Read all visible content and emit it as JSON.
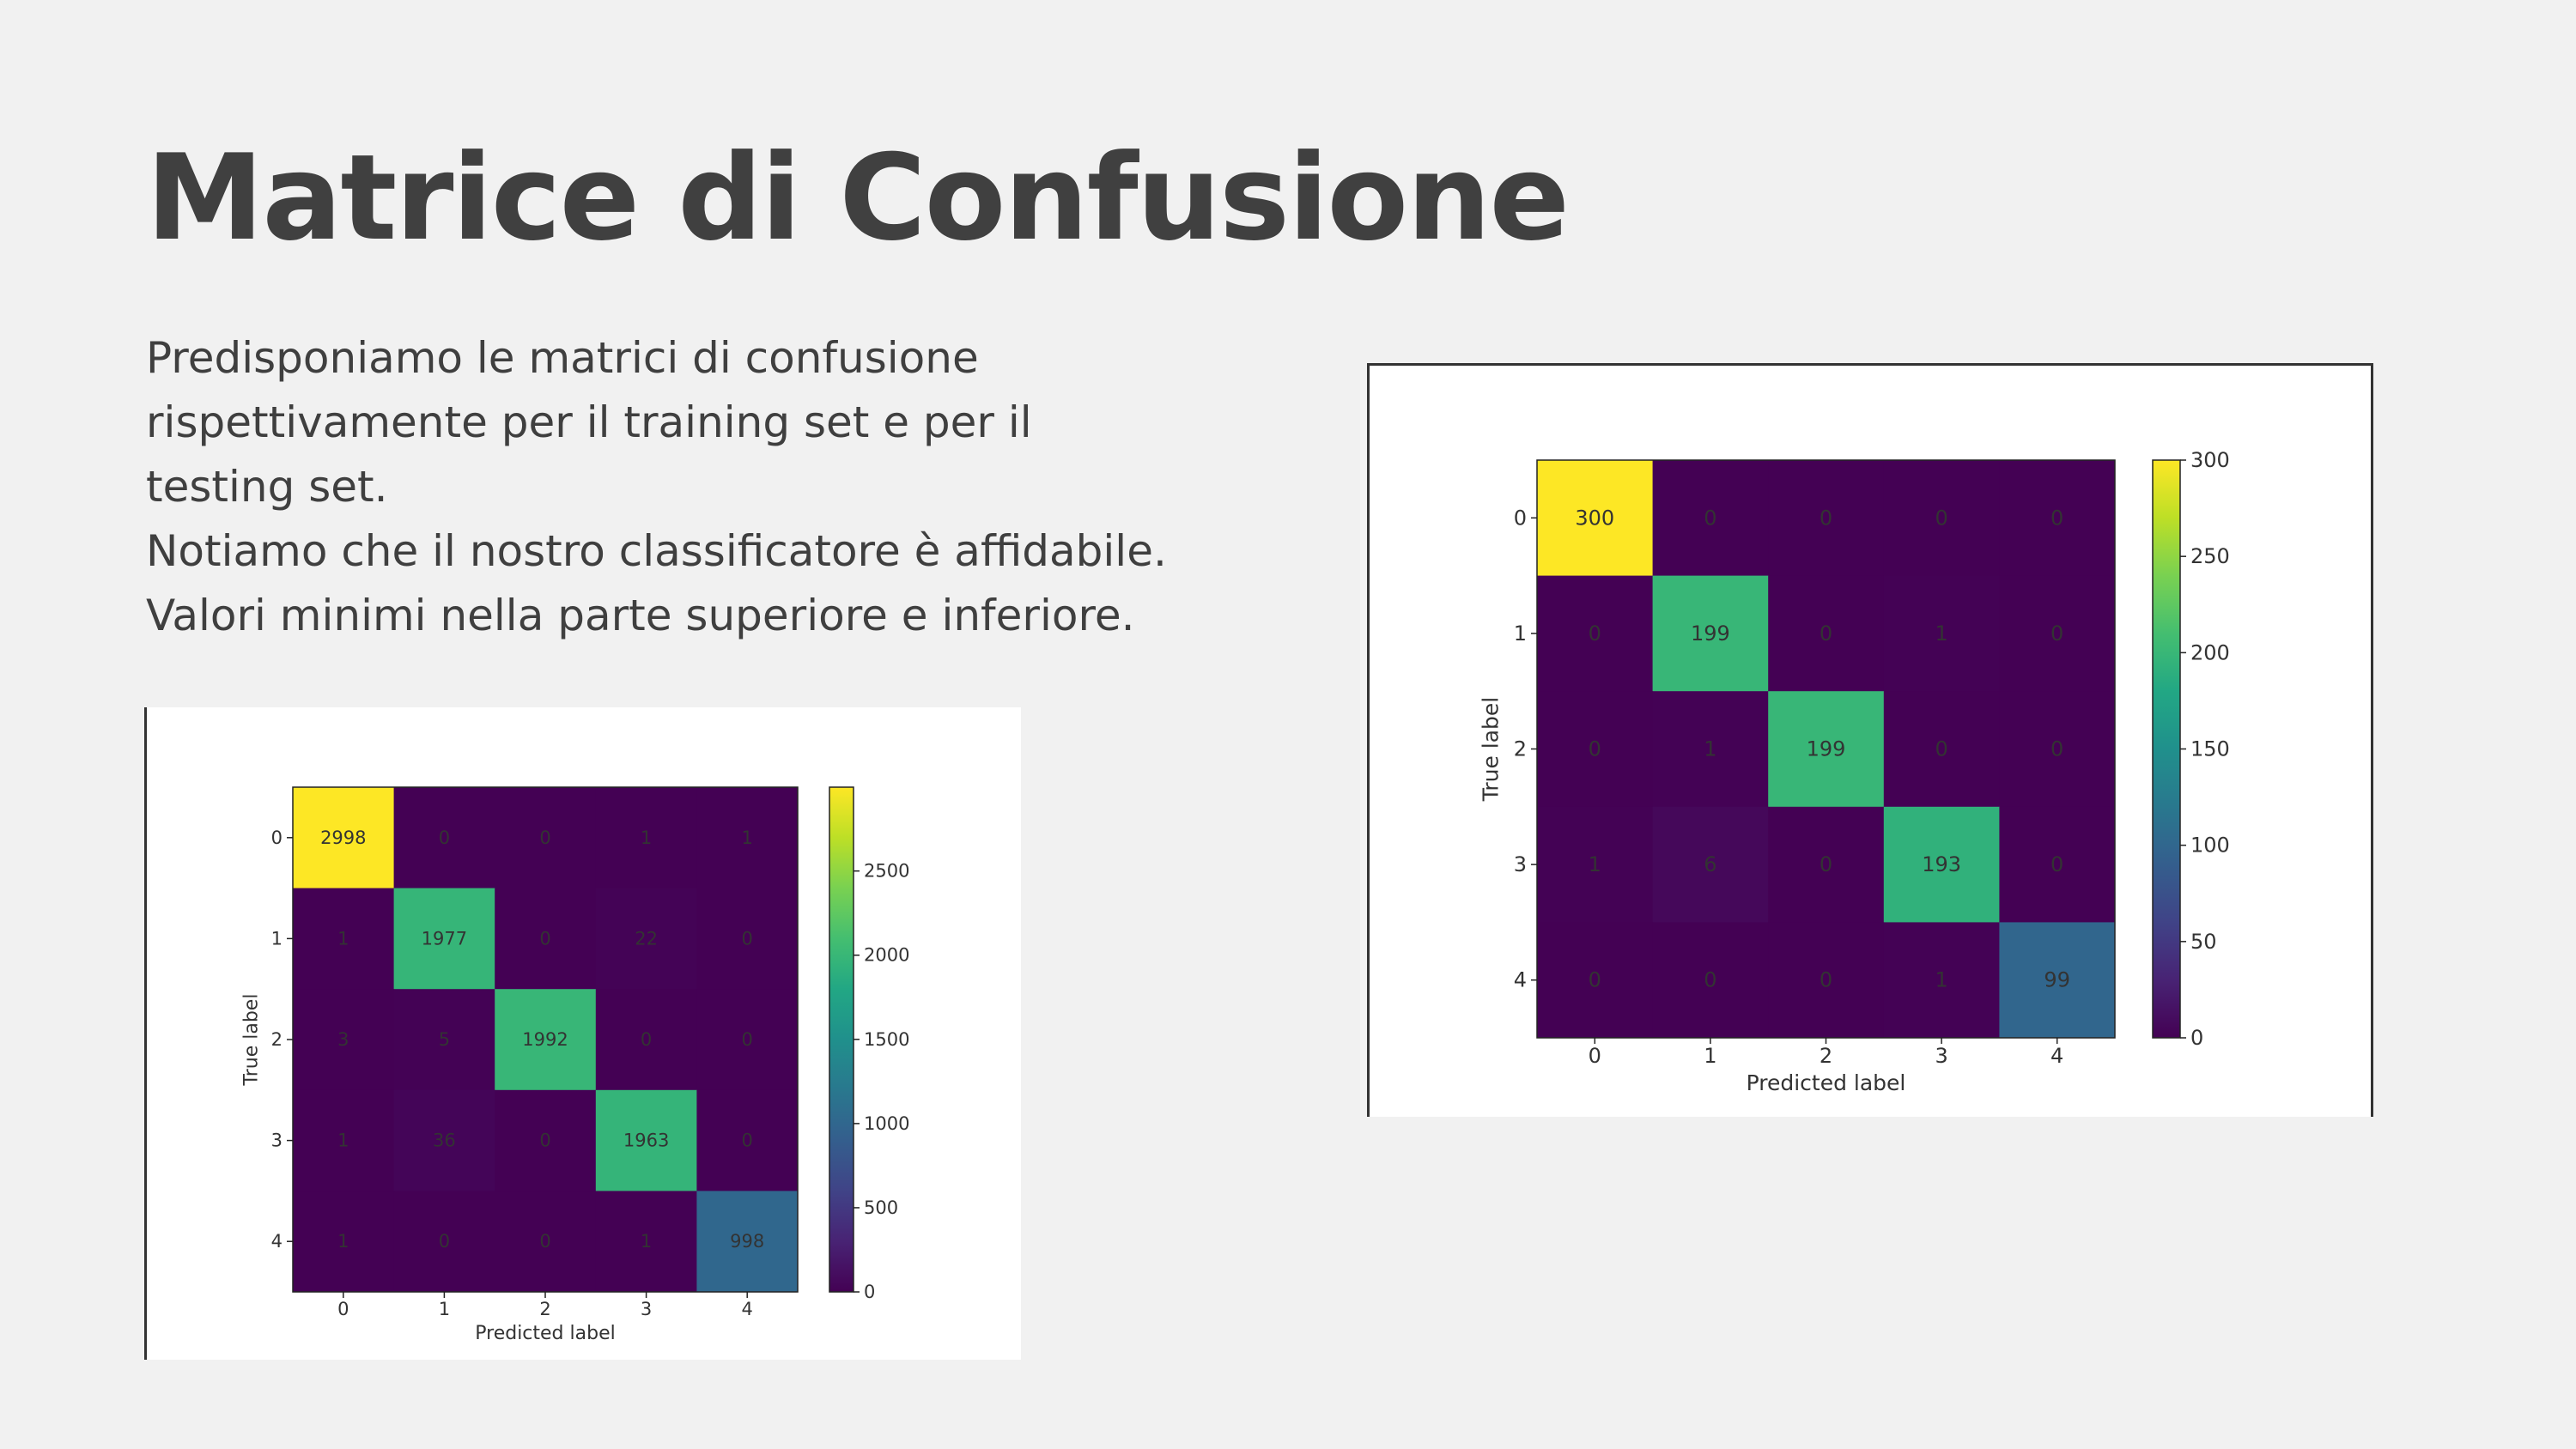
{
  "slide": {
    "title": "Matrice di Confusione",
    "paragraphs": [
      "Predisponiamo le matrici di confusione rispettivamente per il training set e per il testing set.",
      "Notiamo che il nostro classificatore è affidabile.",
      "Valori minimi nella parte superiore e inferiore."
    ]
  },
  "chart_data": [
    {
      "type": "heatmap",
      "colormap": "viridis",
      "xlabel": "Predicted label",
      "ylabel": "True label",
      "x_categories": [
        "0",
        "1",
        "2",
        "3",
        "4"
      ],
      "y_categories": [
        "0",
        "1",
        "2",
        "3",
        "4"
      ],
      "values": [
        [
          2998,
          0,
          0,
          1,
          1
        ],
        [
          1,
          1977,
          0,
          22,
          0
        ],
        [
          3,
          5,
          1992,
          0,
          0
        ],
        [
          1,
          36,
          0,
          1963,
          0
        ],
        [
          1,
          0,
          0,
          1,
          998
        ]
      ],
      "colorbar": {
        "min": 0,
        "max": 2998,
        "ticks": [
          0,
          500,
          1000,
          1500,
          2000,
          2500
        ]
      },
      "grid": false
    },
    {
      "type": "heatmap",
      "colormap": "viridis",
      "xlabel": "Predicted label",
      "ylabel": "True label",
      "x_categories": [
        "0",
        "1",
        "2",
        "3",
        "4"
      ],
      "y_categories": [
        "0",
        "1",
        "2",
        "3",
        "4"
      ],
      "values": [
        [
          300,
          0,
          0,
          0,
          0
        ],
        [
          0,
          199,
          0,
          1,
          0
        ],
        [
          0,
          1,
          199,
          0,
          0
        ],
        [
          1,
          6,
          0,
          193,
          0
        ],
        [
          0,
          0,
          0,
          1,
          99
        ]
      ],
      "colorbar": {
        "min": 0,
        "max": 300,
        "ticks": [
          0,
          50,
          100,
          150,
          200,
          250,
          300
        ]
      },
      "grid": false
    }
  ]
}
